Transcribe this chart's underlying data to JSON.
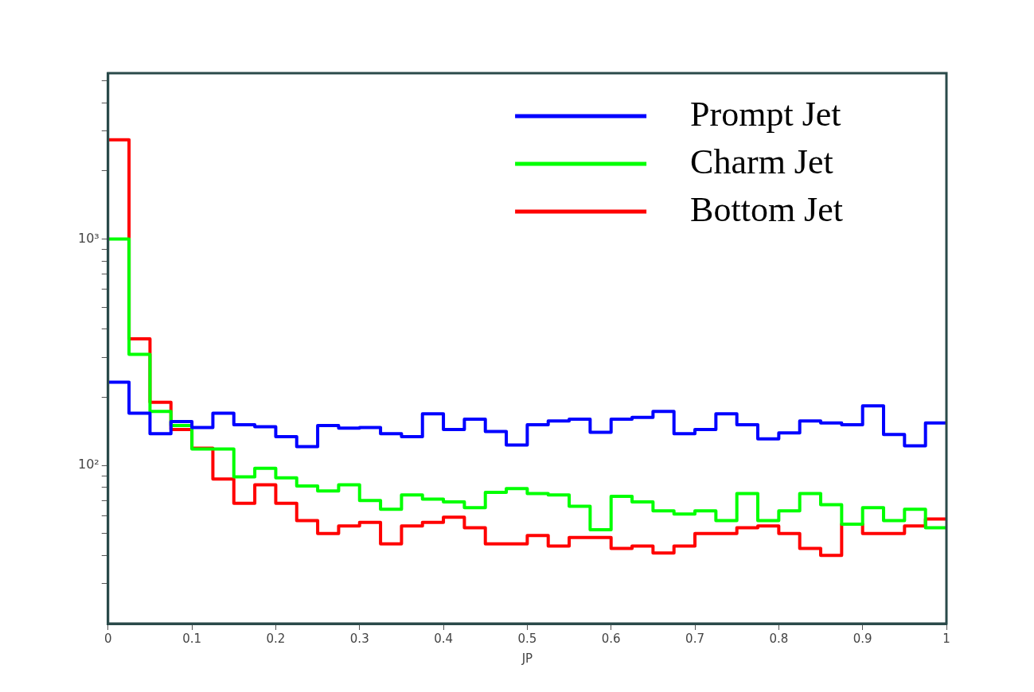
{
  "chart_data": {
    "type": "histogram",
    "xlabel": "JP",
    "bins": [
      0,
      0.025,
      0.05,
      0.075,
      0.1,
      0.125,
      0.15,
      0.175,
      0.2,
      0.225,
      0.25,
      0.275,
      0.3,
      0.325,
      0.35,
      0.375,
      0.4,
      0.425,
      0.45,
      0.475,
      0.5,
      0.525,
      0.55,
      0.575,
      0.6,
      0.625,
      0.65,
      0.675,
      0.7,
      0.725,
      0.75,
      0.775,
      0.8,
      0.825,
      0.85,
      0.875,
      0.9,
      0.925,
      0.95,
      0.975,
      1
    ],
    "series": [
      {
        "name": "Prompt Jet",
        "color": "#0000ff",
        "values": [
          233,
          170,
          138,
          156,
          147,
          170,
          151,
          148,
          134,
          121,
          150,
          146,
          147,
          138,
          134,
          169,
          144,
          160,
          141,
          123,
          151,
          157,
          160,
          140,
          160,
          163,
          173,
          138,
          144,
          169,
          151,
          131,
          139,
          157,
          154,
          151,
          183,
          137,
          122,
          154
        ]
      },
      {
        "name": "Charm Jet",
        "color": "#00ff00",
        "values": [
          1000,
          309,
          173,
          150,
          118,
          118,
          89,
          97,
          88,
          81,
          77,
          82,
          70,
          64,
          74,
          71,
          69,
          65,
          76,
          79,
          75,
          74,
          66,
          52,
          73,
          69,
          63,
          61,
          63,
          57,
          75,
          57,
          63,
          75,
          67,
          55,
          65,
          57,
          64,
          53
        ]
      },
      {
        "name": "Bottom Jet",
        "color": "#ff0000",
        "values": [
          2740,
          362,
          190,
          144,
          119,
          87,
          68,
          82,
          68,
          57,
          50,
          54,
          56,
          45,
          54,
          56,
          59,
          53,
          45,
          45,
          49,
          44,
          48,
          48,
          43,
          44,
          41,
          44,
          50,
          50,
          53,
          54,
          50,
          43,
          40,
          55,
          50,
          50,
          54,
          58
        ]
      }
    ],
    "log": "y",
    "xlim": [
      0,
      1
    ],
    "ylim": [
      20,
      5400
    ],
    "xticks": [
      0,
      0.1,
      0.2,
      0.3,
      0.4,
      0.5,
      0.6,
      0.7,
      0.8,
      0.9,
      1
    ],
    "yticks": [
      {
        "value": 30,
        "label": null
      },
      {
        "value": 40,
        "label": null
      },
      {
        "value": 50,
        "label": null
      },
      {
        "value": 60,
        "label": null
      },
      {
        "value": 70,
        "label": null
      },
      {
        "value": 80,
        "label": null
      },
      {
        "value": 90,
        "label": null
      },
      {
        "value": 100,
        "label": "10²"
      },
      {
        "value": 200,
        "label": null
      },
      {
        "value": 300,
        "label": null
      },
      {
        "value": 400,
        "label": null
      },
      {
        "value": 500,
        "label": null
      },
      {
        "value": 600,
        "label": null
      },
      {
        "value": 700,
        "label": null
      },
      {
        "value": 800,
        "label": null
      },
      {
        "value": 900,
        "label": null
      },
      {
        "value": 1000,
        "label": "10³"
      },
      {
        "value": 2000,
        "label": null
      },
      {
        "value": 3000,
        "label": null
      },
      {
        "value": 4000,
        "label": null
      },
      {
        "value": 5000,
        "label": null
      }
    ],
    "legend": "top right",
    "grid": false
  }
}
